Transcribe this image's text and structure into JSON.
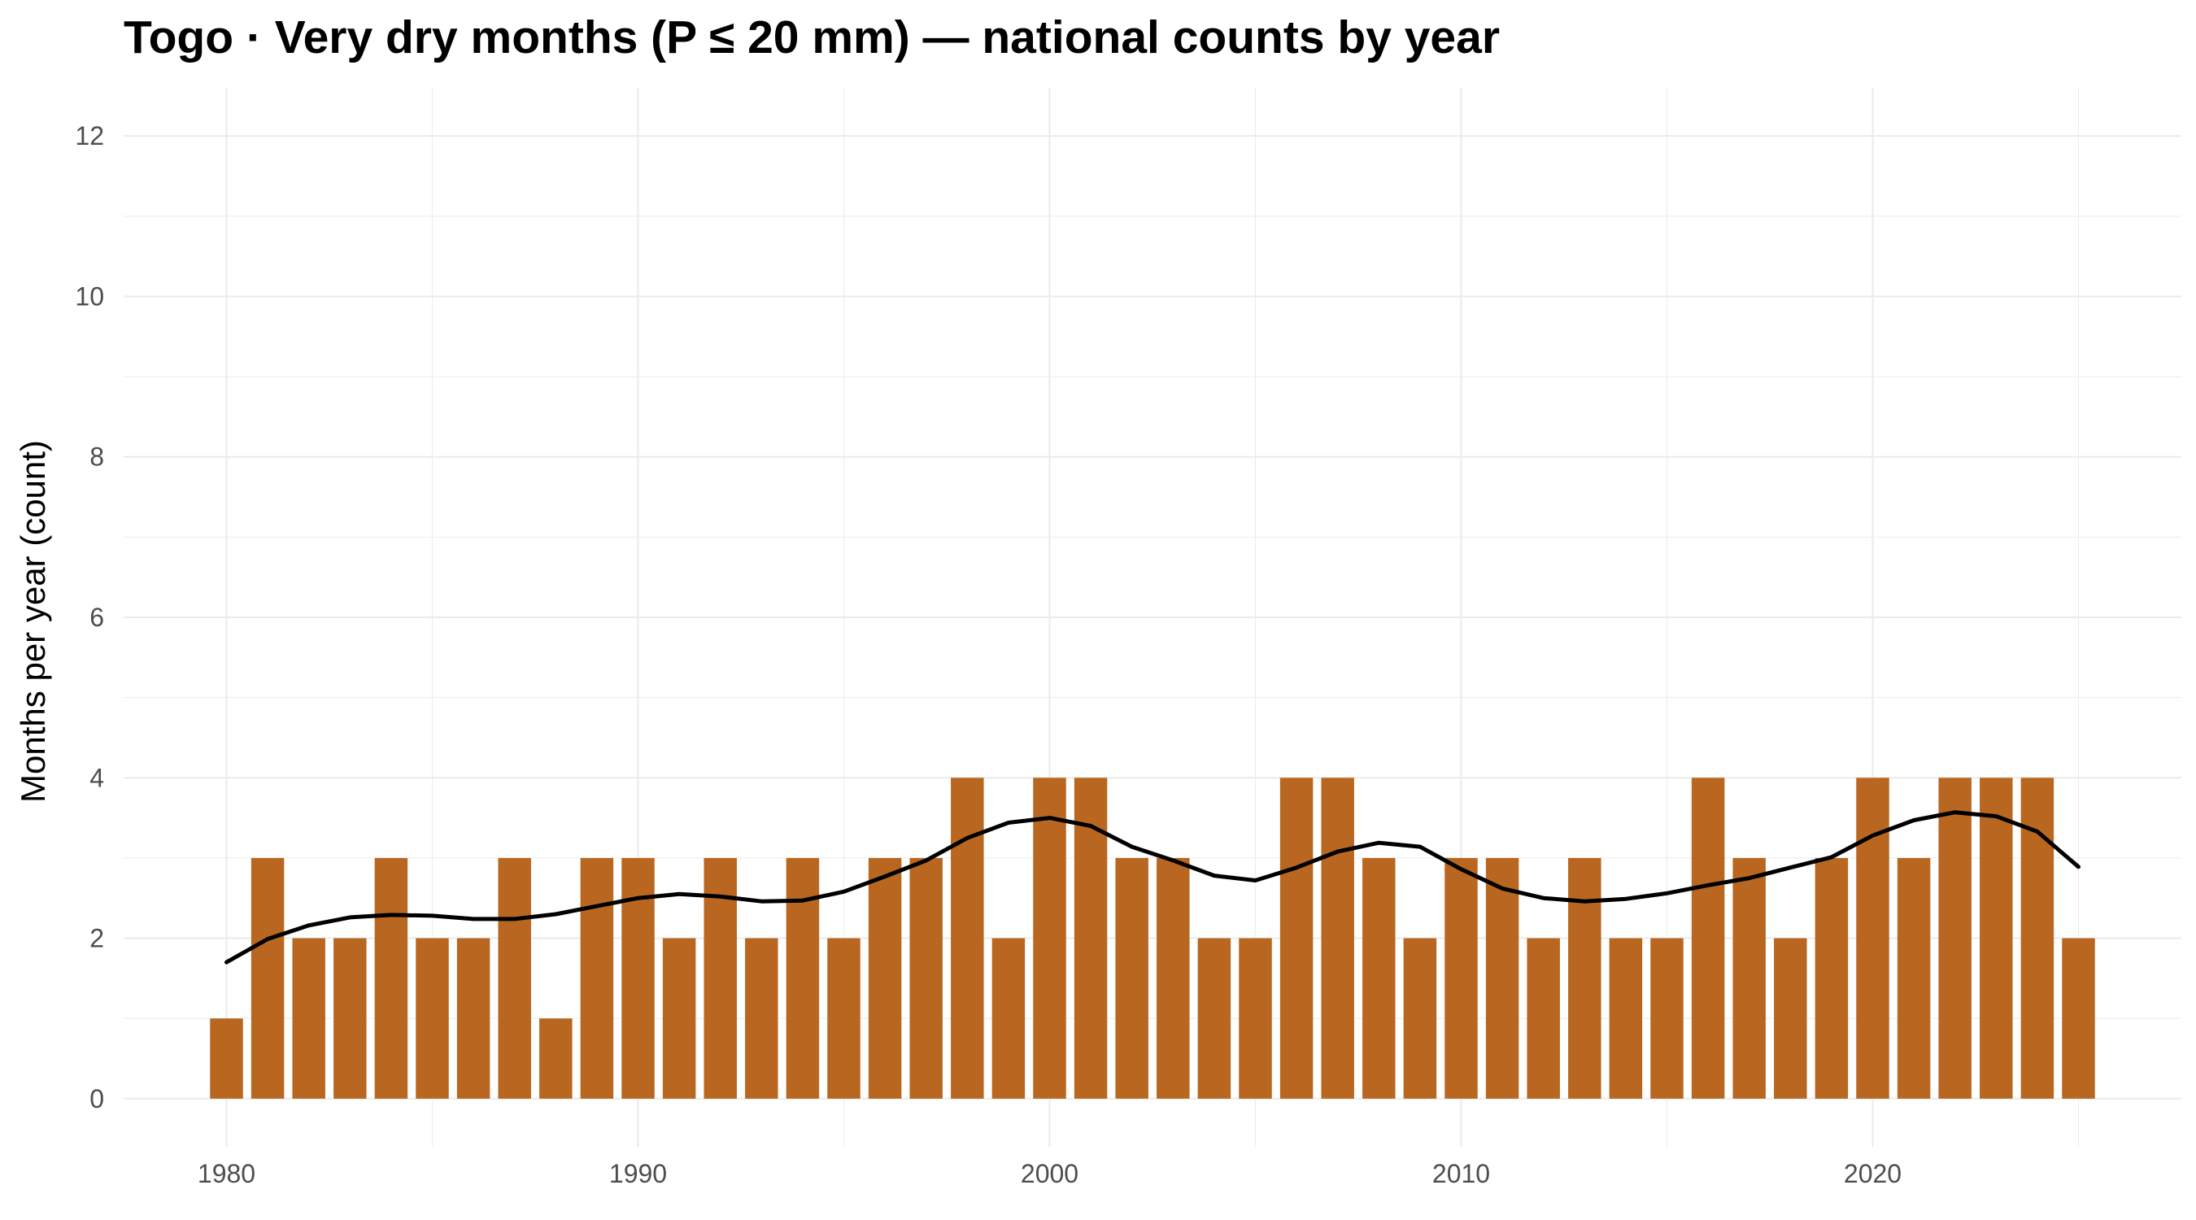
{
  "chart_data": {
    "type": "bar",
    "title": "Togo · Very dry months (P ≤ 20 mm) — national counts by year",
    "xlabel": "",
    "ylabel": "Months per year (count)",
    "x": [
      1980,
      1981,
      1982,
      1983,
      1984,
      1985,
      1986,
      1987,
      1988,
      1989,
      1990,
      1991,
      1992,
      1993,
      1994,
      1995,
      1996,
      1997,
      1998,
      1999,
      2000,
      2001,
      2002,
      2003,
      2004,
      2005,
      2006,
      2007,
      2008,
      2009,
      2010,
      2011,
      2012,
      2013,
      2014,
      2015,
      2016,
      2017,
      2018,
      2019,
      2020,
      2021,
      2022,
      2023,
      2024,
      2025
    ],
    "values": [
      1,
      3,
      2,
      2,
      3,
      2,
      2,
      3,
      1,
      3,
      3,
      2,
      3,
      2,
      3,
      2,
      3,
      3,
      4,
      2,
      4,
      4,
      3,
      3,
      2,
      2,
      4,
      4,
      3,
      2,
      3,
      3,
      2,
      3,
      2,
      2,
      4,
      3,
      2,
      3,
      4,
      3,
      4,
      4,
      4,
      2
    ],
    "trend": {
      "x": [
        1980,
        1981,
        1982,
        1983,
        1984,
        1985,
        1986,
        1987,
        1988,
        1989,
        1990,
        1991,
        1992,
        1993,
        1994,
        1995,
        1996,
        1997,
        1998,
        1999,
        2000,
        2001,
        2002,
        2003,
        2004,
        2005,
        2006,
        2007,
        2008,
        2009,
        2010,
        2011,
        2012,
        2013,
        2014,
        2015,
        2016,
        2017,
        2018,
        2019,
        2020,
        2021,
        2022,
        2023,
        2024,
        2025
      ],
      "values": [
        1.7,
        1.99,
        2.16,
        2.26,
        2.29,
        2.28,
        2.24,
        2.24,
        2.3,
        2.4,
        2.5,
        2.55,
        2.52,
        2.46,
        2.47,
        2.58,
        2.77,
        2.97,
        3.25,
        3.44,
        3.5,
        3.4,
        3.14,
        2.97,
        2.78,
        2.72,
        2.88,
        3.08,
        3.19,
        3.14,
        2.86,
        2.62,
        2.5,
        2.46,
        2.49,
        2.56,
        2.66,
        2.75,
        2.88,
        3.01,
        3.28,
        3.47,
        3.57,
        3.52,
        3.33,
        2.89
      ]
    },
    "xlim": [
      1977.5,
      2027.5
    ],
    "ylim": [
      -0.6,
      12.6
    ],
    "x_ticks": [
      "1980",
      "1990",
      "2000",
      "2010",
      "2020"
    ],
    "y_ticks": [
      "0",
      "2",
      "4",
      "6",
      "8",
      "10",
      "12"
    ],
    "grid": true,
    "legend": "none",
    "colors": {
      "bar": "#b96720",
      "trend": "#000000",
      "grid": "#ebebeb",
      "tick_text": "#4d4d4d"
    }
  }
}
